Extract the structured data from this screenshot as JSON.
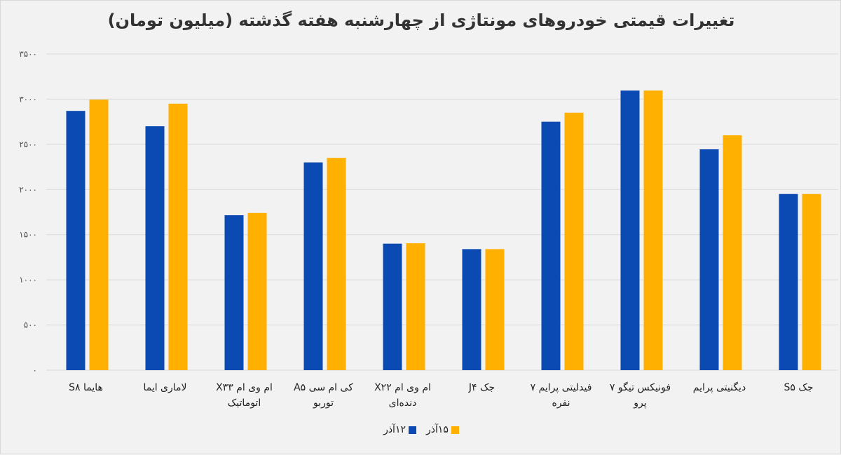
{
  "chart_data": {
    "type": "bar",
    "title": "تغییرات قیمتی خودروهای مونتاژی از چهارشنبه هفته گذشته (میلیون تومان)",
    "xlabel": "",
    "ylabel": "",
    "ylim": [
      0,
      3500
    ],
    "yticks": [
      0,
      500,
      1000,
      1500,
      2000,
      2500,
      3000,
      3500
    ],
    "ytick_labels": [
      "۰",
      "۵۰۰",
      "۱۰۰۰",
      "۱۵۰۰",
      "۲۰۰۰",
      "۲۵۰۰",
      "۳۰۰۰",
      "۳۵۰۰"
    ],
    "grid": true,
    "legend_position": "bottom",
    "categories": [
      [
        "هایما S۸"
      ],
      [
        "لاماری ایما"
      ],
      [
        "ام وی ام X۳۳",
        "اتوماتیک"
      ],
      [
        "کی ام سی A۵",
        "توربو"
      ],
      [
        "ام وی ام X۲۲",
        "دنده‌ای"
      ],
      [
        "جک J۴"
      ],
      [
        "فیدلیتی پرایم ۷",
        "نفره"
      ],
      [
        "فونیکس تیگو ۷",
        "پرو"
      ],
      [
        "دیگنیتی پرایم"
      ],
      [
        "جک S۵"
      ]
    ],
    "series": [
      {
        "name": "۱۲آذر",
        "color": "#0a4ab2",
        "values": [
          2870,
          2700,
          1715,
          2300,
          1400,
          1340,
          2750,
          3095,
          2445,
          1950
        ]
      },
      {
        "name": "۱۵آذر",
        "color": "#ffb000",
        "values": [
          2995,
          2950,
          1740,
          2350,
          1405,
          1340,
          2850,
          3095,
          2600,
          1950
        ]
      }
    ]
  }
}
